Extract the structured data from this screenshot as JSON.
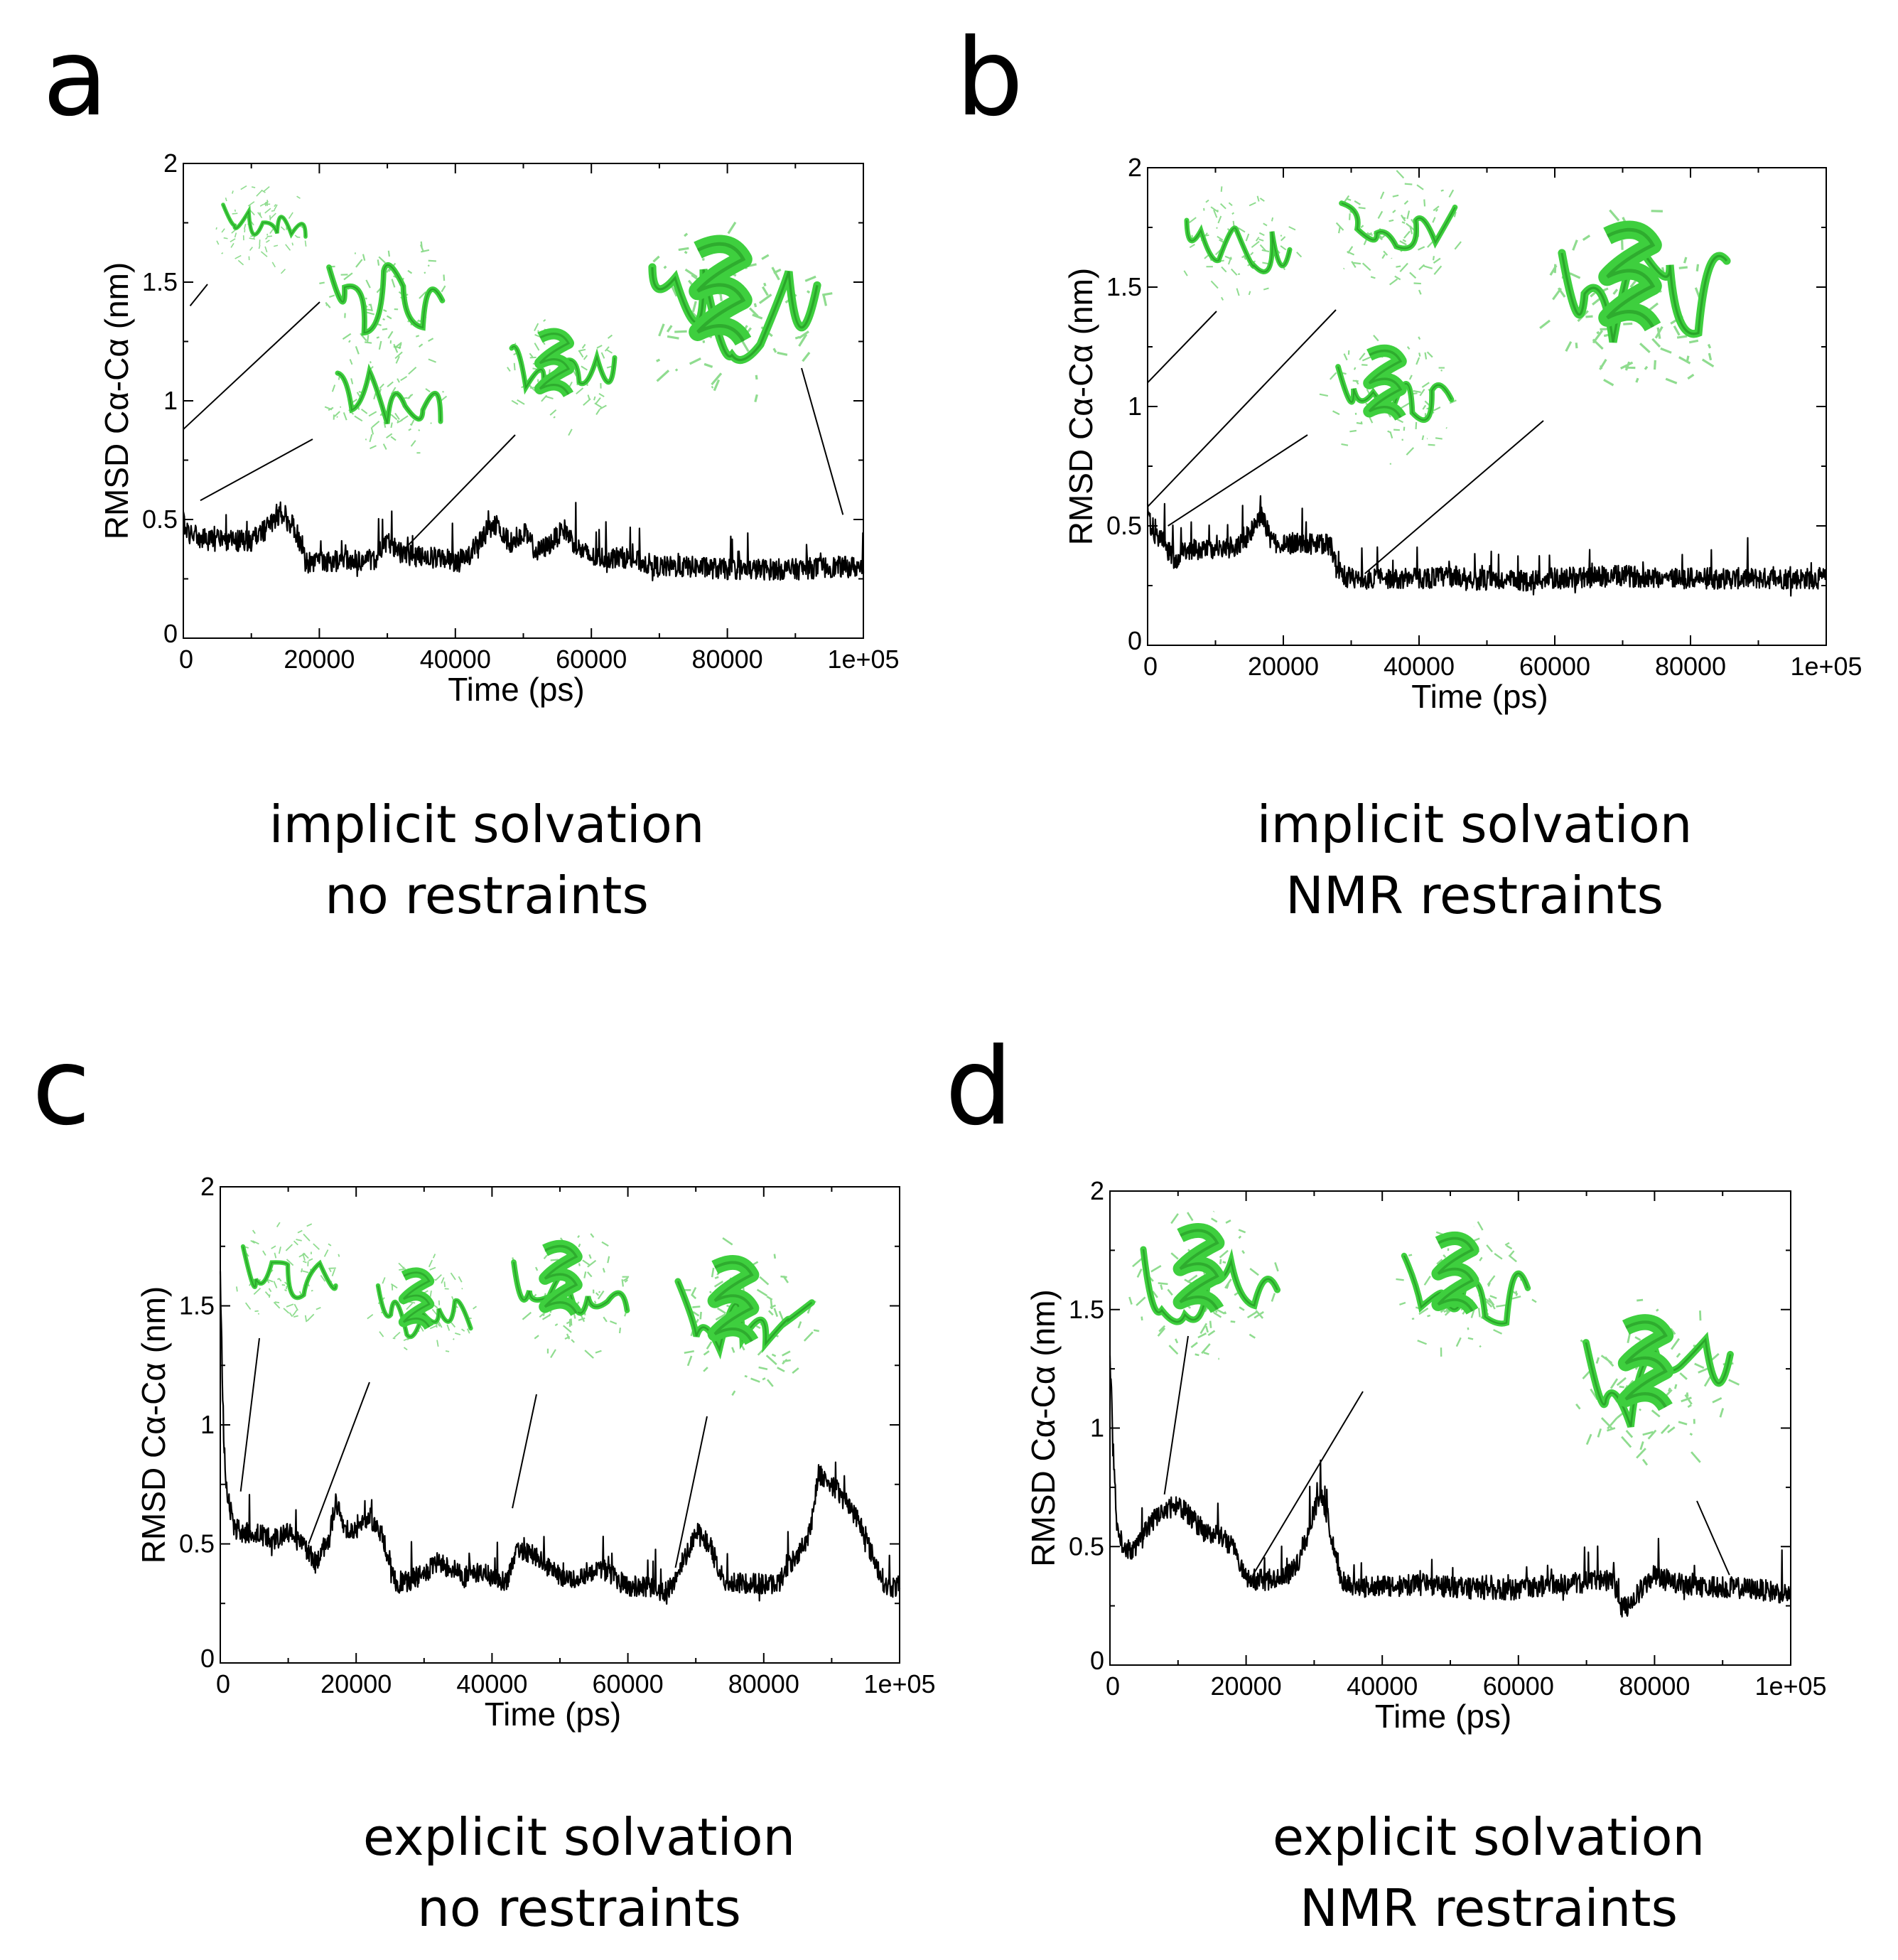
{
  "figure": {
    "panels": [
      {
        "letter": "a",
        "caption_line1": "implicit solvation",
        "caption_line2": "no restraints"
      },
      {
        "letter": "b",
        "caption_line1": "implicit solvation",
        "caption_line2": "NMR restraints"
      },
      {
        "letter": "c",
        "caption_line1": "explicit solvation",
        "caption_line2": "no restraints"
      },
      {
        "letter": "d",
        "caption_line1": "explicit solvation",
        "caption_line2": "NMR restraints"
      }
    ],
    "colors": {
      "trace": "#000000",
      "axes": "#000000",
      "structure_green": "#3ecf3e",
      "structure_dark": "#1e8a1e"
    }
  },
  "chart_data": [
    {
      "type": "line",
      "panel": "a",
      "xlabel": "Time (ps)",
      "ylabel": "RMSD Cα-Cα (nm)",
      "xlim": [
        0,
        100000
      ],
      "ylim": [
        0,
        2
      ],
      "xticks": [
        "0",
        "20000",
        "40000",
        "60000",
        "80000",
        "1e+05"
      ],
      "yticks": [
        "0",
        "0.5",
        "1",
        "1.5",
        "2"
      ],
      "series": [
        {
          "name": "RMSD",
          "x": [
            0,
            500,
            2000,
            5000,
            10000,
            13000,
            14000,
            16000,
            17000,
            18000,
            20000,
            25000,
            28000,
            30000,
            32000,
            35000,
            38000,
            40000,
            42000,
            44000,
            46000,
            48000,
            50000,
            52000,
            54000,
            56000,
            58000,
            60000,
            65000,
            70000,
            75000,
            80000,
            85000,
            90000,
            95000,
            100000
          ],
          "values": [
            0.5,
            0.45,
            0.42,
            0.41,
            0.41,
            0.48,
            0.52,
            0.48,
            0.42,
            0.32,
            0.32,
            0.33,
            0.33,
            0.4,
            0.36,
            0.34,
            0.34,
            0.32,
            0.35,
            0.42,
            0.48,
            0.4,
            0.45,
            0.36,
            0.4,
            0.46,
            0.38,
            0.34,
            0.34,
            0.3,
            0.3,
            0.29,
            0.29,
            0.29,
            0.3,
            0.3
          ]
        }
      ],
      "annotations": [
        "peptide conformation snapshots at selected times"
      ]
    },
    {
      "type": "line",
      "panel": "b",
      "xlabel": "Time (ps)",
      "ylabel": "RMSD Cα-Cα (nm)",
      "xlim": [
        0,
        100000
      ],
      "ylim": [
        0,
        2
      ],
      "xticks": [
        "0",
        "20000",
        "40000",
        "60000",
        "80000",
        "1e+05"
      ],
      "yticks": [
        "0",
        "0.5",
        "1",
        "1.5",
        "2"
      ],
      "series": [
        {
          "name": "RMSD",
          "x": [
            0,
            500,
            2000,
            4000,
            6000,
            10000,
            14000,
            16000,
            17000,
            18000,
            19000,
            20000,
            25000,
            27000,
            28000,
            30000,
            35000,
            40000,
            45000,
            50000,
            55000,
            60000,
            70000,
            80000,
            90000,
            100000
          ],
          "values": [
            0.6,
            0.48,
            0.44,
            0.36,
            0.4,
            0.4,
            0.42,
            0.52,
            0.55,
            0.45,
            0.42,
            0.43,
            0.42,
            0.42,
            0.3,
            0.28,
            0.28,
            0.28,
            0.29,
            0.27,
            0.27,
            0.28,
            0.29,
            0.28,
            0.28,
            0.28
          ]
        }
      ],
      "annotations": [
        "peptide conformation snapshots at selected times"
      ]
    },
    {
      "type": "line",
      "panel": "c",
      "xlabel": "Time (ps)",
      "ylabel": "RMSD Cα-Cα (nm)",
      "xlim": [
        0,
        100000
      ],
      "ylim": [
        0,
        2
      ],
      "xticks": [
        "0",
        "20000",
        "40000",
        "60000",
        "80000",
        "1e+05"
      ],
      "yticks": [
        "0",
        "0.5",
        "1",
        "1.5",
        "2"
      ],
      "series": [
        {
          "name": "RMSD",
          "x": [
            0,
            500,
            1000,
            2000,
            3000,
            5000,
            8000,
            10000,
            12000,
            14000,
            16000,
            17000,
            18000,
            20000,
            22000,
            24000,
            25000,
            26000,
            28000,
            30000,
            32000,
            34000,
            36000,
            38000,
            40000,
            42000,
            44000,
            46000,
            48000,
            50000,
            52000,
            54000,
            56000,
            58000,
            60000,
            62000,
            64000,
            66000,
            68000,
            70000,
            72000,
            74000,
            76000,
            78000,
            80000,
            82000,
            84000,
            86000,
            87000,
            88000,
            90000,
            92000,
            94000,
            96000,
            98000,
            100000
          ],
          "values": [
            1.6,
            0.95,
            0.7,
            0.58,
            0.55,
            0.55,
            0.52,
            0.55,
            0.5,
            0.42,
            0.52,
            0.68,
            0.58,
            0.55,
            0.62,
            0.52,
            0.42,
            0.32,
            0.35,
            0.37,
            0.42,
            0.4,
            0.36,
            0.38,
            0.36,
            0.34,
            0.48,
            0.46,
            0.4,
            0.36,
            0.35,
            0.38,
            0.4,
            0.36,
            0.32,
            0.32,
            0.31,
            0.3,
            0.42,
            0.55,
            0.5,
            0.35,
            0.33,
            0.34,
            0.33,
            0.33,
            0.42,
            0.5,
            0.58,
            0.8,
            0.75,
            0.68,
            0.6,
            0.45,
            0.32,
            0.32
          ]
        }
      ],
      "annotations": [
        "peptide conformation snapshots at selected times"
      ]
    },
    {
      "type": "line",
      "panel": "d",
      "xlabel": "Time (ps)",
      "ylabel": "RMSD Cα-Cα (nm)",
      "xlim": [
        0,
        100000
      ],
      "ylim": [
        0,
        2
      ],
      "xticks": [
        "0",
        "20000",
        "40000",
        "60000",
        "80000",
        "1e+05"
      ],
      "yticks": [
        "0",
        "0.5",
        "1",
        "1.5",
        "2"
      ],
      "series": [
        {
          "name": "RMSD",
          "x": [
            0,
            500,
            1000,
            2000,
            4000,
            6000,
            8000,
            10000,
            12000,
            14000,
            16000,
            18000,
            19000,
            20000,
            24000,
            26000,
            28000,
            30000,
            31000,
            32000,
            34000,
            36000,
            40000,
            45000,
            50000,
            55000,
            60000,
            65000,
            70000,
            74000,
            75000,
            76000,
            78000,
            80000,
            82000,
            85000,
            90000,
            95000,
            100000
          ],
          "values": [
            1.3,
            0.9,
            0.6,
            0.48,
            0.5,
            0.6,
            0.65,
            0.68,
            0.62,
            0.56,
            0.55,
            0.5,
            0.42,
            0.36,
            0.36,
            0.38,
            0.45,
            0.65,
            0.72,
            0.62,
            0.36,
            0.33,
            0.33,
            0.34,
            0.33,
            0.32,
            0.32,
            0.34,
            0.35,
            0.36,
            0.25,
            0.24,
            0.32,
            0.38,
            0.36,
            0.33,
            0.33,
            0.32,
            0.3
          ]
        }
      ],
      "annotations": [
        "peptide conformation snapshots at selected times"
      ]
    }
  ]
}
